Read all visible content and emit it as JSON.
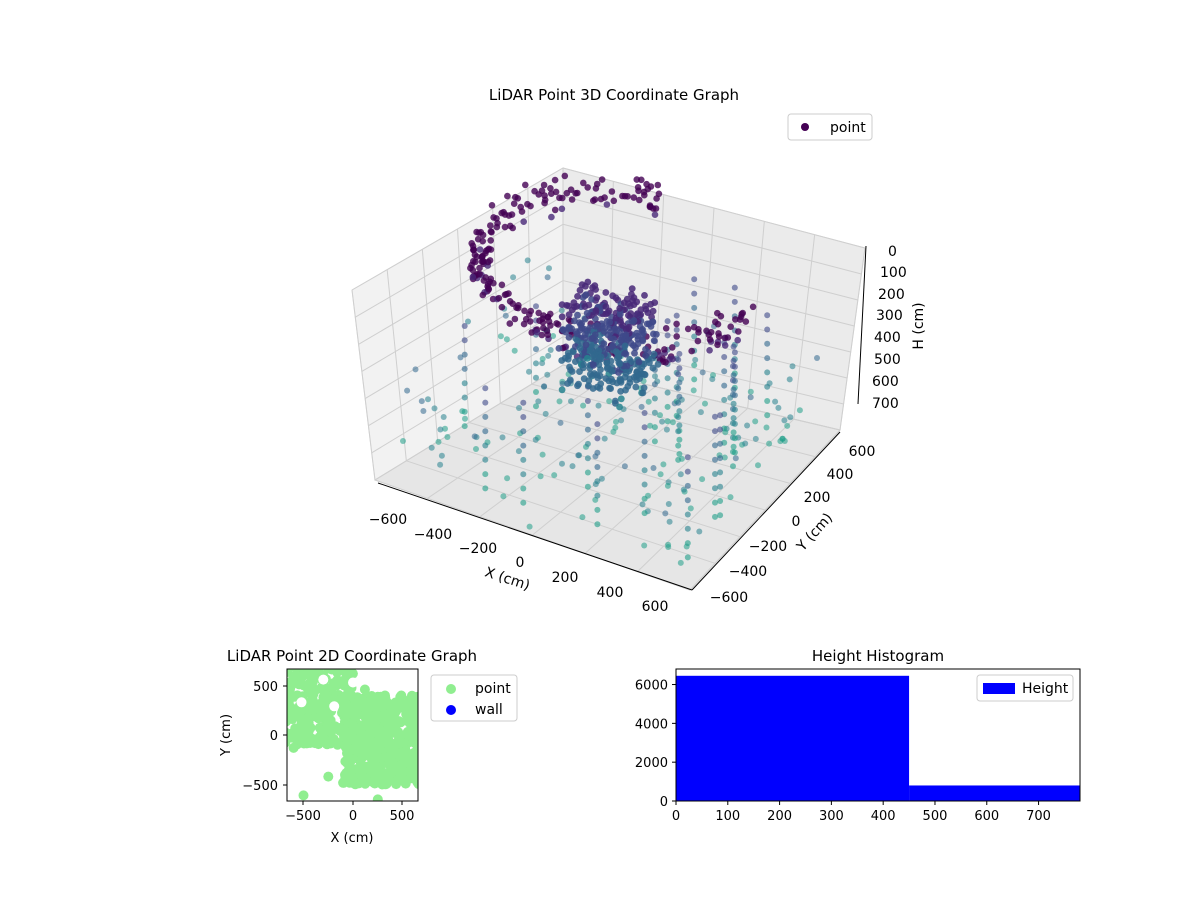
{
  "chart_data": [
    {
      "type": "scatter",
      "title": "LiDAR Point 3D Coordinate Graph",
      "xlabel": "X (cm)",
      "ylabel": "Y (cm)",
      "zlabel": "H (cm)",
      "xlim": [
        -700,
        700
      ],
      "ylim": [
        -700,
        700
      ],
      "zlim": [
        750,
        0
      ],
      "x_ticks": [
        "−600",
        "−400",
        "−200",
        "0",
        "200",
        "400",
        "600"
      ],
      "y_ticks": [
        "−600",
        "−400",
        "−200",
        "0",
        "200",
        "400",
        "600"
      ],
      "z_ticks": [
        "0",
        "100",
        "200",
        "300",
        "400",
        "500",
        "600",
        "700"
      ],
      "z_inverted": true,
      "grid": true,
      "colormap": "viridis (by height)",
      "legend": {
        "placement": "top-right",
        "entries": [
          {
            "label": "point",
            "color": "#440154"
          }
        ]
      },
      "series": [
        {
          "name": "point",
          "description_of_structure": "ceiling ring, central object, vertical wall/column points",
          "ring_radius": 560,
          "ring_height": [
            20,
            80
          ],
          "central_object": {
            "x": [
              -150,
              150
            ],
            "y": [
              -150,
              150
            ],
            "h": [
              250,
              500
            ]
          }
        }
      ]
    },
    {
      "type": "scatter",
      "title": "LiDAR Point 2D Coordinate Graph",
      "xlabel": "X (cm)",
      "ylabel": "Y (cm)",
      "xlim": [
        -680,
        680
      ],
      "ylim": [
        -680,
        680
      ],
      "x_ticks": [
        "−500",
        "0",
        "500"
      ],
      "y_ticks": [
        "500",
        "0",
        "−500"
      ],
      "legend": {
        "placement": "right (outside)",
        "entries": [
          {
            "label": "point",
            "color": "#90ee90"
          },
          {
            "label": "wall",
            "color": "#0000ff"
          }
        ]
      }
    },
    {
      "type": "bar",
      "title": "Height Histogram",
      "bins": [
        {
          "from": 0,
          "to": 450,
          "count": 6450
        },
        {
          "from": 450,
          "to": 780,
          "count": 800
        }
      ],
      "xlim": [
        0,
        780
      ],
      "ylim": [
        0,
        6800
      ],
      "x_ticks": [
        "0",
        "100",
        "200",
        "300",
        "400",
        "500",
        "600",
        "700"
      ],
      "y_ticks": [
        "0",
        "2000",
        "4000",
        "6000"
      ],
      "color": "#0000ff",
      "legend": {
        "placement": "top-right",
        "entries": [
          {
            "label": "Height",
            "color": "#0000ff"
          }
        ]
      }
    }
  ]
}
